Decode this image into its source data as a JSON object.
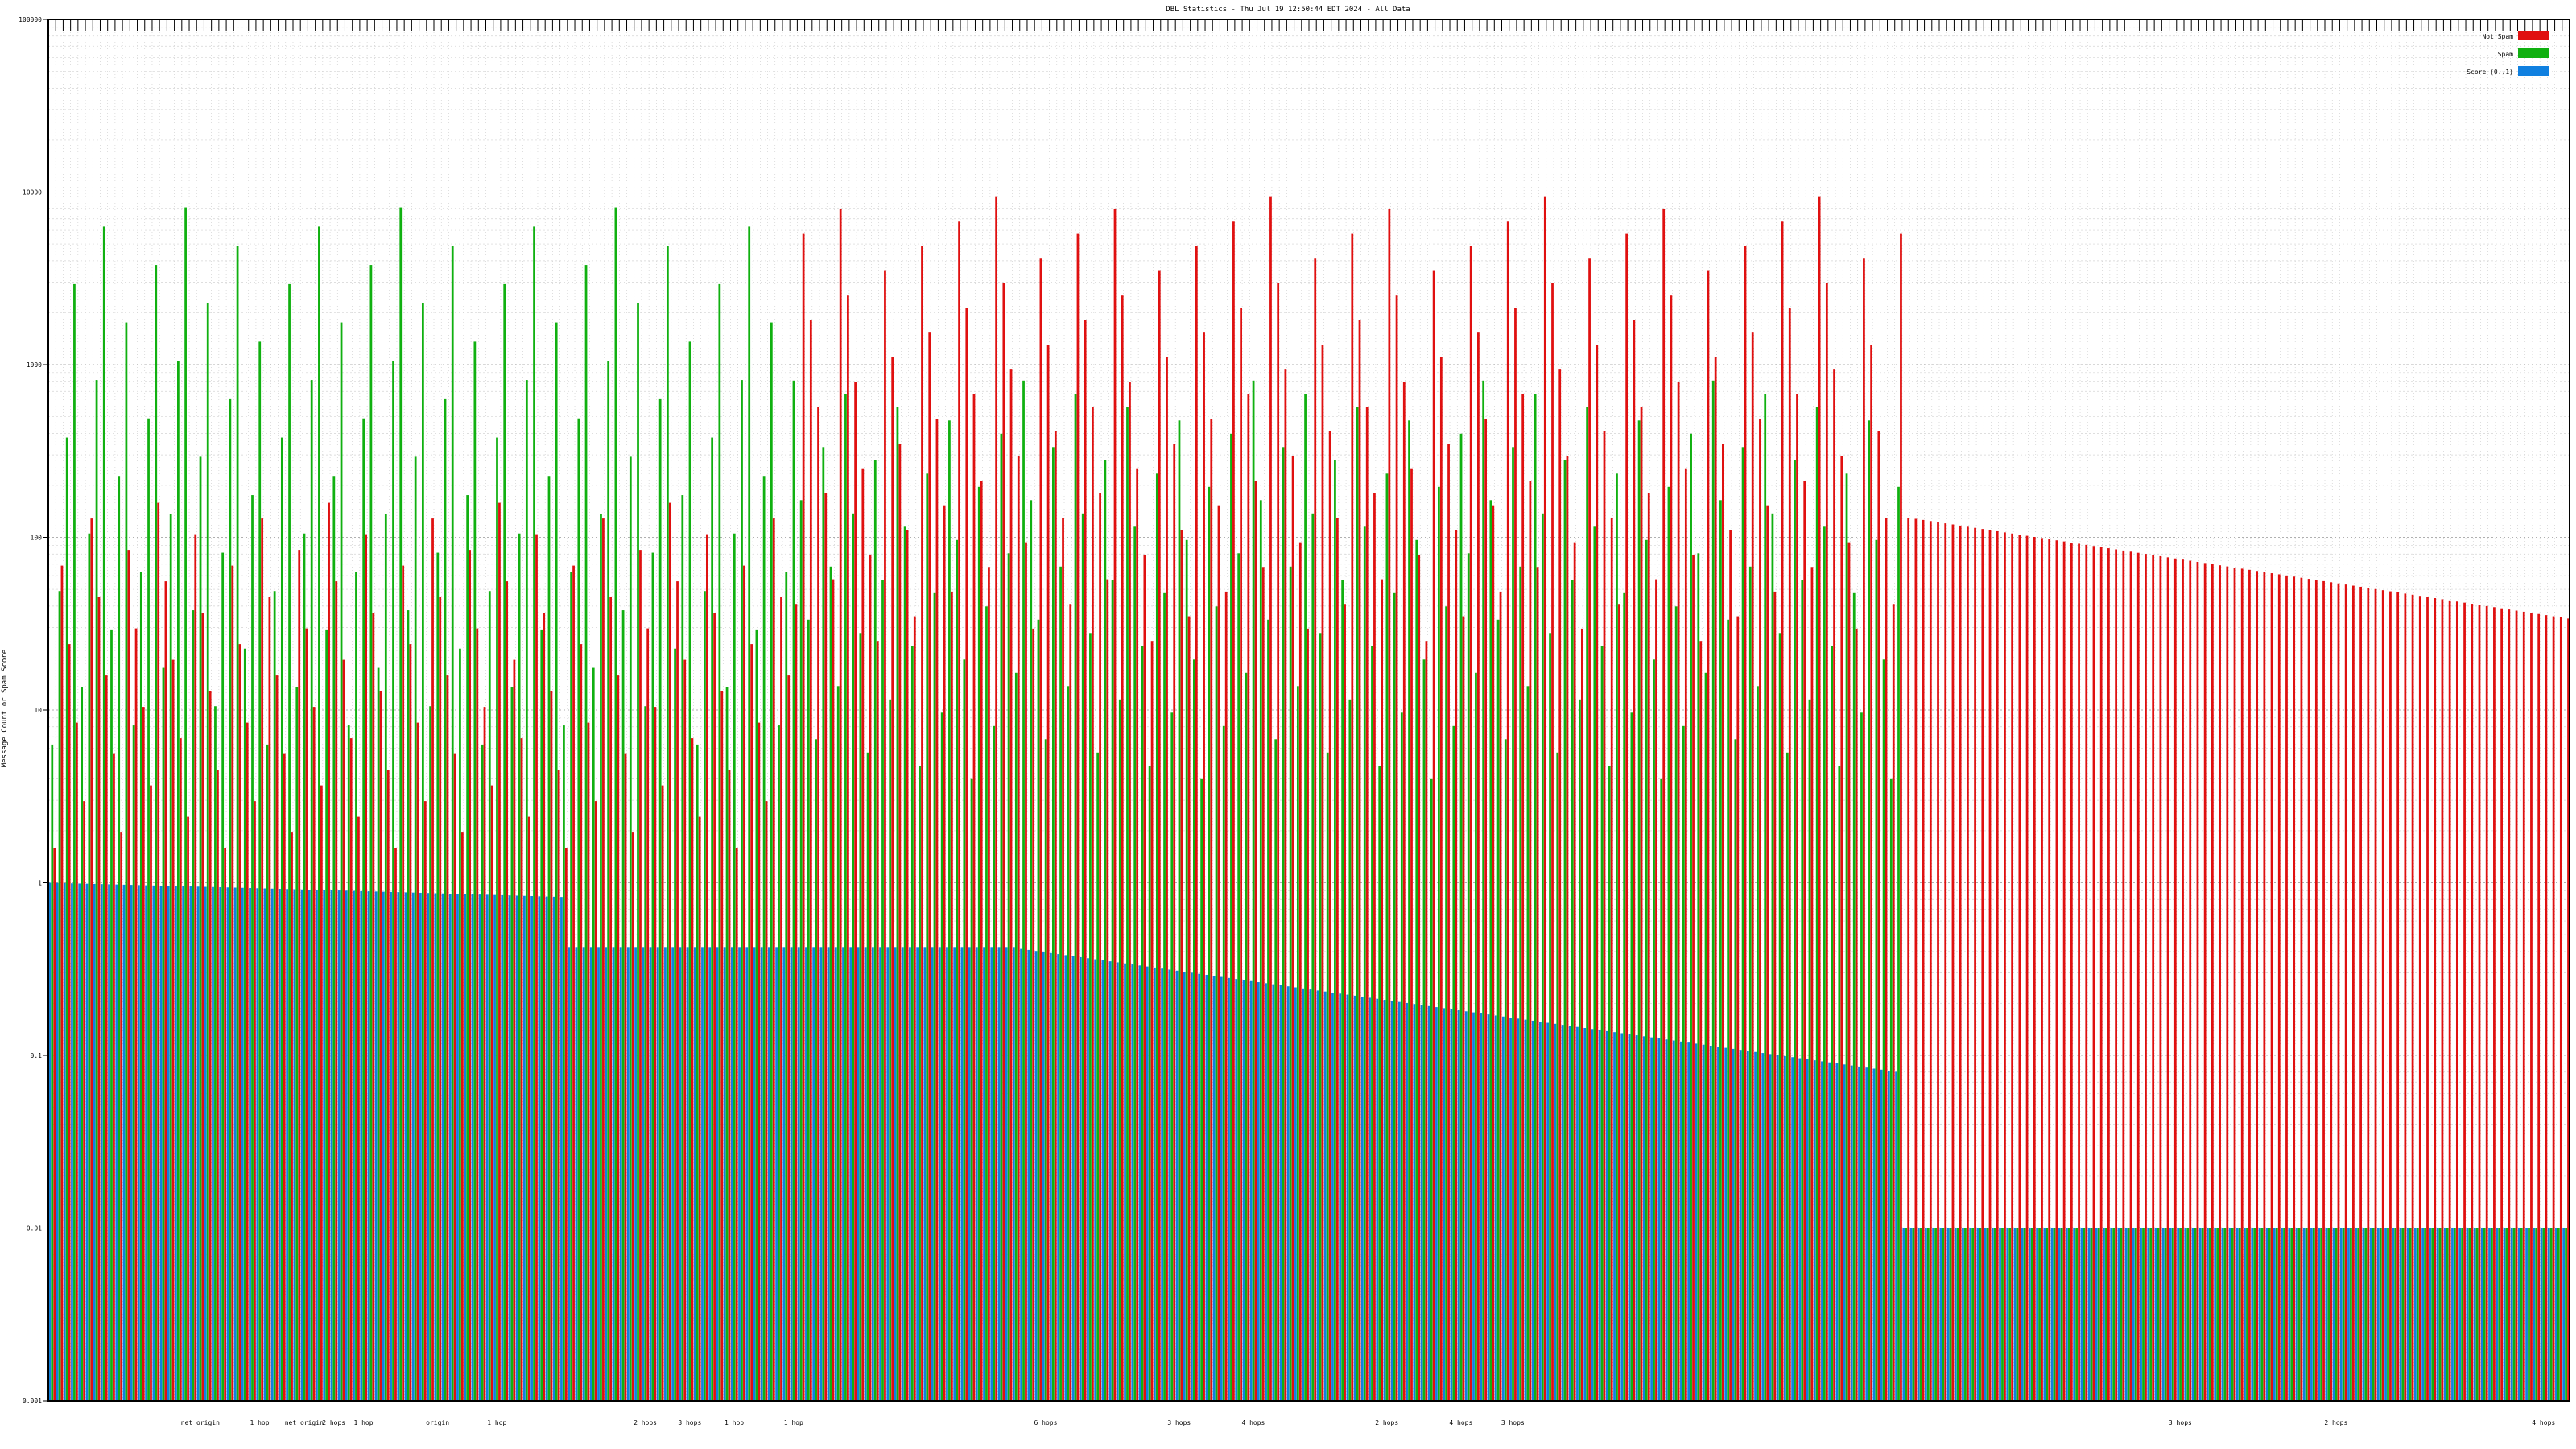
{
  "chart_data": {
    "type": "bar",
    "title": "DBL Statistics - Thu Jul 19 12:50:44 EDT 2024 - All Data",
    "xlabel": "",
    "ylabel": "Message Count or Spam Score",
    "yscale": "log",
    "ylim": [
      0.001,
      100000
    ],
    "ytick_labels": [
      "0.001",
      "0.01",
      "0.1",
      "1",
      "10",
      "100",
      "1000",
      "10000",
      "100000"
    ],
    "grid": true,
    "legend_position": "top-right",
    "bar_groups": 340,
    "series": [
      {
        "name": "Not Spam",
        "color": "#e01010"
      },
      {
        "name": "Spam",
        "color": "#10b010"
      },
      {
        "name": "Score (0..1)",
        "color": "#1080e0"
      }
    ],
    "x_group_labels": [
      {
        "text": "net origin",
        "group": 20
      },
      {
        "text": "1 hop",
        "group": 28
      },
      {
        "text": "net origin",
        "group": 34
      },
      {
        "text": "2 hops",
        "group": 38
      },
      {
        "text": "1 hop",
        "group": 42
      },
      {
        "text": "origin",
        "group": 52
      },
      {
        "text": "1 hop",
        "group": 60
      },
      {
        "text": "2 hops",
        "group": 80
      },
      {
        "text": "3 hops",
        "group": 86
      },
      {
        "text": "1 hop",
        "group": 92
      },
      {
        "text": "1 hop",
        "group": 100
      },
      {
        "text": "6 hops",
        "group": 134
      },
      {
        "text": "3 hops",
        "group": 152
      },
      {
        "text": "4 hops",
        "group": 162
      },
      {
        "text": "2 hops",
        "group": 180
      },
      {
        "text": "4 hops",
        "group": 190
      },
      {
        "text": "3 hops",
        "group": 197
      },
      {
        "text": "3 hops",
        "group": 287
      },
      {
        "text": "2 hops",
        "group": 308
      },
      {
        "text": "4 hops",
        "group": 336
      }
    ]
  }
}
